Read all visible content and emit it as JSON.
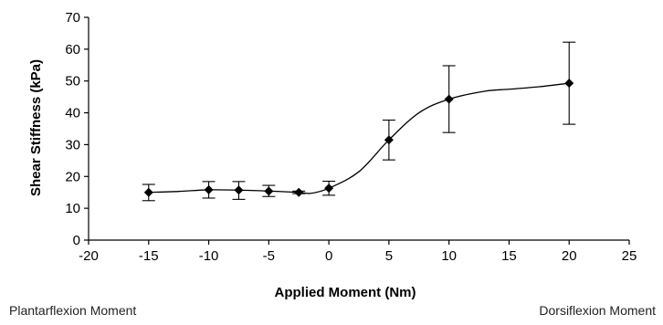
{
  "chart_data": {
    "type": "scatter",
    "title": "",
    "xlabel": "Applied Moment (Nm)",
    "ylabel": "Shear Stiffness (kPa)",
    "xlim": [
      -20,
      25
    ],
    "ylim": [
      0,
      70
    ],
    "x_ticks": [
      -20,
      -15,
      -10,
      -5,
      0,
      5,
      10,
      15,
      20,
      25
    ],
    "y_ticks": [
      0,
      10,
      20,
      30,
      40,
      50,
      60,
      70
    ],
    "grid": false,
    "legend": "none",
    "series": [
      {
        "marker": "diamond",
        "x": [
          -15,
          -10,
          -7.5,
          -5,
          -2.5,
          0,
          5,
          10,
          20
        ],
        "y": [
          15,
          15.8,
          15.7,
          15.4,
          15,
          16.3,
          31.5,
          44.3,
          49.3
        ],
        "error_low": [
          12.4,
          13.2,
          12.8,
          13.7,
          14.6,
          14.1,
          25.2,
          33.8,
          36.4
        ],
        "error_high": [
          17.5,
          18.4,
          18.4,
          17.2,
          15.4,
          18.5,
          37.7,
          54.8,
          62.2
        ]
      }
    ],
    "trend_line": {
      "style": "smooth",
      "x": [
        -15,
        -12.5,
        -10,
        -7.5,
        -5,
        -2.5,
        -1.5,
        0,
        2.5,
        5,
        7.5,
        10,
        13,
        15,
        17.5,
        20
      ],
      "y": [
        15,
        15.3,
        15.8,
        15.7,
        15.4,
        15,
        14.7,
        16.3,
        21.5,
        31.5,
        40,
        44.3,
        46.8,
        47.4,
        48.2,
        49.3
      ]
    }
  },
  "annotations": {
    "left": "Plantarflexion Moment",
    "right": "Dorsiflexion Moment"
  },
  "colors": {
    "marker": "#000000",
    "line": "#000000",
    "axis": "#000000"
  }
}
